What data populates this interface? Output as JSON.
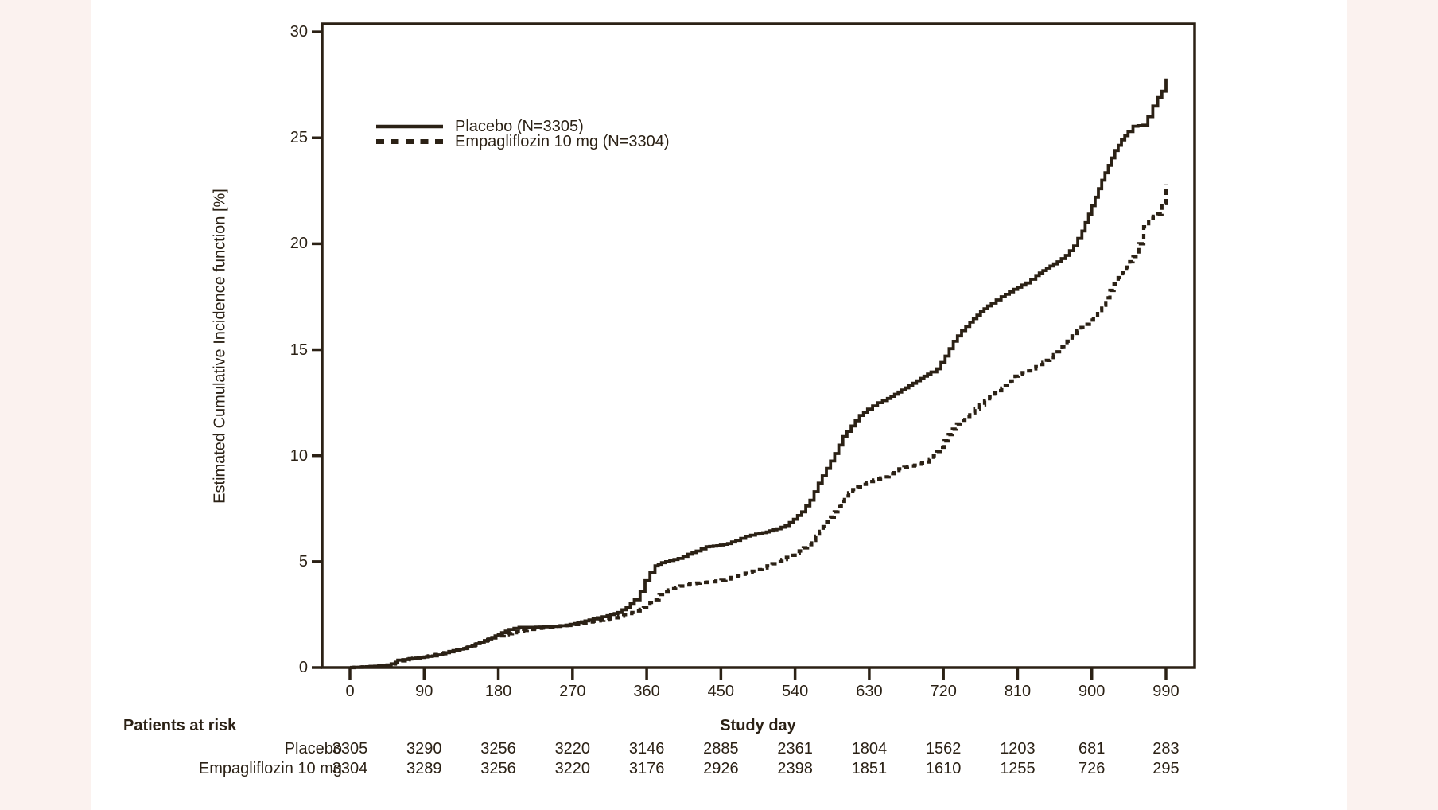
{
  "page": {
    "background": "#fbf2ef",
    "panel_background": "#ffffff",
    "ink_color": "#2b2115"
  },
  "chart_data": {
    "type": "line",
    "title": "",
    "xlabel": "Study day",
    "ylabel": "Estimated Cumulative Incidence function [%]",
    "xlim": [
      -34,
      1030
    ],
    "ylim": [
      0,
      30.4
    ],
    "x_ticks": [
      0,
      90,
      180,
      270,
      360,
      450,
      540,
      630,
      720,
      810,
      900,
      990
    ],
    "y_ticks": [
      0,
      5,
      10,
      15,
      20,
      25,
      30
    ],
    "grid": false,
    "legend_position": "upper-left-inside",
    "line_style": "step-after",
    "series": [
      {
        "name": "Placebo (N=3305)",
        "style": "solid",
        "points": [
          [
            0,
            0
          ],
          [
            25,
            0.05
          ],
          [
            45,
            0.1
          ],
          [
            55,
            0.25
          ],
          [
            58,
            0.35
          ],
          [
            70,
            0.4
          ],
          [
            80,
            0.45
          ],
          [
            90,
            0.5
          ],
          [
            100,
            0.55
          ],
          [
            112,
            0.65
          ],
          [
            125,
            0.8
          ],
          [
            138,
            0.9
          ],
          [
            148,
            1.05
          ],
          [
            158,
            1.2
          ],
          [
            168,
            1.35
          ],
          [
            176,
            1.5
          ],
          [
            184,
            1.65
          ],
          [
            193,
            1.8
          ],
          [
            205,
            1.9
          ],
          [
            220,
            1.9
          ],
          [
            235,
            1.92
          ],
          [
            250,
            1.95
          ],
          [
            262,
            2.0
          ],
          [
            272,
            2.08
          ],
          [
            285,
            2.2
          ],
          [
            300,
            2.35
          ],
          [
            312,
            2.45
          ],
          [
            325,
            2.6
          ],
          [
            335,
            2.85
          ],
          [
            345,
            3.2
          ],
          [
            352,
            3.6
          ],
          [
            358,
            4.1
          ],
          [
            364,
            4.5
          ],
          [
            370,
            4.8
          ],
          [
            378,
            4.95
          ],
          [
            388,
            5.05
          ],
          [
            398,
            5.15
          ],
          [
            410,
            5.35
          ],
          [
            420,
            5.5
          ],
          [
            432,
            5.7
          ],
          [
            445,
            5.75
          ],
          [
            458,
            5.85
          ],
          [
            468,
            6.0
          ],
          [
            480,
            6.2
          ],
          [
            492,
            6.3
          ],
          [
            505,
            6.4
          ],
          [
            518,
            6.55
          ],
          [
            528,
            6.7
          ],
          [
            538,
            7.0
          ],
          [
            548,
            7.35
          ],
          [
            558,
            7.9
          ],
          [
            568,
            8.7
          ],
          [
            578,
            9.4
          ],
          [
            588,
            10.1
          ],
          [
            598,
            10.9
          ],
          [
            608,
            11.4
          ],
          [
            618,
            11.9
          ],
          [
            628,
            12.2
          ],
          [
            640,
            12.5
          ],
          [
            652,
            12.7
          ],
          [
            665,
            13.0
          ],
          [
            678,
            13.3
          ],
          [
            692,
            13.65
          ],
          [
            705,
            13.95
          ],
          [
            712,
            14.1
          ],
          [
            722,
            14.7
          ],
          [
            732,
            15.4
          ],
          [
            742,
            15.9
          ],
          [
            752,
            16.3
          ],
          [
            765,
            16.8
          ],
          [
            778,
            17.2
          ],
          [
            790,
            17.5
          ],
          [
            805,
            17.85
          ],
          [
            820,
            18.15
          ],
          [
            832,
            18.5
          ],
          [
            845,
            18.85
          ],
          [
            858,
            19.15
          ],
          [
            868,
            19.45
          ],
          [
            878,
            19.9
          ],
          [
            888,
            20.6
          ],
          [
            896,
            21.4
          ],
          [
            904,
            22.2
          ],
          [
            912,
            23.0
          ],
          [
            920,
            23.7
          ],
          [
            928,
            24.4
          ],
          [
            936,
            24.9
          ],
          [
            944,
            25.3
          ],
          [
            950,
            25.55
          ],
          [
            962,
            25.6
          ],
          [
            968,
            26.0
          ],
          [
            974,
            26.5
          ],
          [
            980,
            26.9
          ],
          [
            985,
            27.2
          ],
          [
            990,
            27.8
          ]
        ]
      },
      {
        "name": "Empagliflozin 10 mg (N=3304)",
        "style": "dashed",
        "points": [
          [
            0,
            0
          ],
          [
            25,
            0.05
          ],
          [
            45,
            0.12
          ],
          [
            55,
            0.22
          ],
          [
            62,
            0.32
          ],
          [
            72,
            0.42
          ],
          [
            85,
            0.48
          ],
          [
            95,
            0.55
          ],
          [
            108,
            0.65
          ],
          [
            120,
            0.75
          ],
          [
            132,
            0.85
          ],
          [
            142,
            0.95
          ],
          [
            152,
            1.1
          ],
          [
            162,
            1.25
          ],
          [
            172,
            1.4
          ],
          [
            182,
            1.5
          ],
          [
            192,
            1.6
          ],
          [
            202,
            1.7
          ],
          [
            215,
            1.78
          ],
          [
            228,
            1.85
          ],
          [
            242,
            1.9
          ],
          [
            255,
            1.97
          ],
          [
            268,
            2.0
          ],
          [
            282,
            2.1
          ],
          [
            295,
            2.18
          ],
          [
            308,
            2.25
          ],
          [
            320,
            2.35
          ],
          [
            332,
            2.5
          ],
          [
            342,
            2.6
          ],
          [
            352,
            2.75
          ],
          [
            360,
            2.95
          ],
          [
            368,
            3.2
          ],
          [
            375,
            3.45
          ],
          [
            382,
            3.6
          ],
          [
            390,
            3.72
          ],
          [
            400,
            3.85
          ],
          [
            412,
            3.95
          ],
          [
            425,
            4.0
          ],
          [
            438,
            4.05
          ],
          [
            450,
            4.12
          ],
          [
            462,
            4.25
          ],
          [
            475,
            4.4
          ],
          [
            488,
            4.55
          ],
          [
            500,
            4.7
          ],
          [
            512,
            4.9
          ],
          [
            524,
            5.1
          ],
          [
            535,
            5.3
          ],
          [
            545,
            5.5
          ],
          [
            555,
            5.8
          ],
          [
            565,
            6.2
          ],
          [
            574,
            6.65
          ],
          [
            583,
            7.1
          ],
          [
            592,
            7.6
          ],
          [
            600,
            8.1
          ],
          [
            610,
            8.4
          ],
          [
            622,
            8.65
          ],
          [
            635,
            8.85
          ],
          [
            648,
            9.0
          ],
          [
            660,
            9.3
          ],
          [
            672,
            9.45
          ],
          [
            685,
            9.55
          ],
          [
            698,
            9.7
          ],
          [
            708,
            10.0
          ],
          [
            716,
            10.4
          ],
          [
            726,
            11.0
          ],
          [
            736,
            11.5
          ],
          [
            746,
            11.85
          ],
          [
            758,
            12.2
          ],
          [
            770,
            12.6
          ],
          [
            782,
            12.95
          ],
          [
            795,
            13.3
          ],
          [
            807,
            13.75
          ],
          [
            820,
            14.0
          ],
          [
            832,
            14.2
          ],
          [
            845,
            14.5
          ],
          [
            858,
            14.9
          ],
          [
            870,
            15.4
          ],
          [
            882,
            15.9
          ],
          [
            892,
            16.2
          ],
          [
            902,
            16.6
          ],
          [
            912,
            17.1
          ],
          [
            922,
            17.8
          ],
          [
            932,
            18.4
          ],
          [
            942,
            18.9
          ],
          [
            950,
            19.4
          ],
          [
            957,
            20.0
          ],
          [
            963,
            20.8
          ],
          [
            969,
            21.2
          ],
          [
            980,
            21.4
          ],
          [
            985,
            21.9
          ],
          [
            990,
            22.8
          ]
        ]
      }
    ]
  },
  "risk_table": {
    "title": "Patients at risk",
    "axis_title": "Study day",
    "days": [
      0,
      90,
      180,
      270,
      360,
      450,
      540,
      630,
      720,
      810,
      900,
      990
    ],
    "rows": [
      {
        "label": "Placebo",
        "values": [
          "3305",
          "3290",
          "3256",
          "3220",
          "3146",
          "2885",
          "2361",
          "1804",
          "1562",
          "1203",
          "681",
          "283"
        ]
      },
      {
        "label": "Empagliflozin 10 mg",
        "values": [
          "3304",
          "3289",
          "3256",
          "3220",
          "3176",
          "2926",
          "2398",
          "1851",
          "1610",
          "1255",
          "726",
          "295"
        ]
      }
    ]
  }
}
